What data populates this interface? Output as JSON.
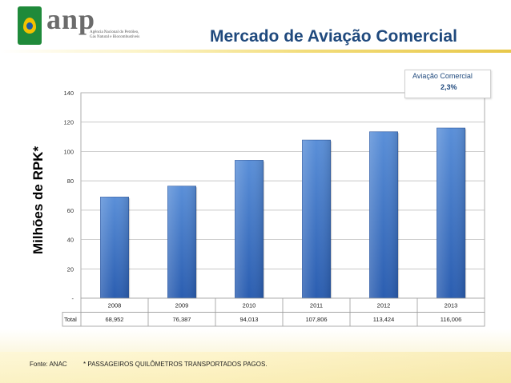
{
  "header": {
    "logo_text": "anp",
    "logo_subtitle": "Agência Nacional do Petróleo, Gás Natural e Biocombustíveis",
    "title": "Mercado de Aviação Comercial"
  },
  "callout": {
    "label": "Aviação Comercial",
    "value": "2,3%"
  },
  "footer": {
    "source": "Fonte: ANAC",
    "note": "* PASSAGEIROS QUILÔMETROS TRANSPORTADOS PAGOS."
  },
  "chart_data": {
    "type": "bar",
    "title": "",
    "xlabel": "",
    "ylabel": "Milhões de RPK*",
    "categories": [
      "2008",
      "2009",
      "2010",
      "2011",
      "2012",
      "2013"
    ],
    "series": [
      {
        "name": "Total",
        "values": [
          68.952,
          76.387,
          94.013,
          107.806,
          113.424,
          116.006
        ],
        "labels": [
          "68,952",
          "76,387",
          "94,013",
          "107,806",
          "113,424",
          "116,006"
        ]
      }
    ],
    "ylim": [
      0,
      140
    ],
    "yticks": [
      0,
      20,
      40,
      60,
      80,
      100,
      120,
      140
    ],
    "ytick_labels": [
      "-",
      "20",
      "40",
      "60",
      "80",
      "100",
      "120",
      "140"
    ],
    "grid": true,
    "data_table": true,
    "colors": {
      "bar_top": "#5a8fd8",
      "bar_bottom": "#2a5db0",
      "grid": "#b5b5b5",
      "title": "#1f497d"
    }
  }
}
